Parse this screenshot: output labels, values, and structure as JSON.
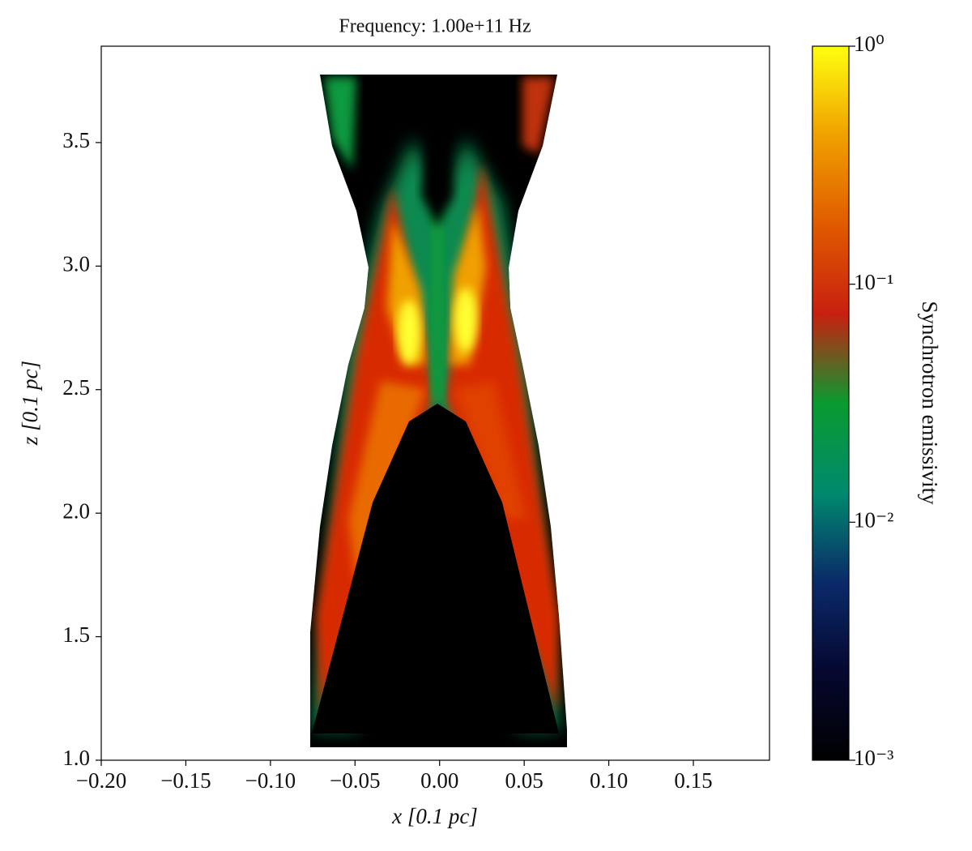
{
  "chart_data": {
    "type": "image",
    "title": "Frequency: 1.00e+11 Hz",
    "x_label": "x [0.1 pc]",
    "y_label": "z [0.1 pc]",
    "xlim": [
      -0.2,
      0.195
    ],
    "ylim": [
      1.0,
      3.89
    ],
    "xticks": [
      {
        "value": -0.2,
        "label": "−0.20"
      },
      {
        "value": -0.15,
        "label": "−0.15"
      },
      {
        "value": -0.1,
        "label": "−0.10"
      },
      {
        "value": -0.05,
        "label": "−0.05"
      },
      {
        "value": 0,
        "label": "0.00"
      },
      0.05,
      {
        "value": 0.1,
        "label": "0.10"
      },
      0.15
    ],
    "yticks": [
      {
        "value": 1.0,
        "label": "1.0"
      },
      1.5,
      {
        "value": 2.0,
        "label": "2.0"
      },
      2.5,
      {
        "value": 3.0,
        "label": "3.0"
      },
      3.5
    ],
    "colorbar": {
      "label": "Synchrotron emissivity",
      "log": true,
      "clim": [
        0.001,
        1
      ],
      "ticks": [
        {
          "value": 0.001,
          "label": "10⁻³"
        },
        {
          "value": 0.01,
          "label": "10⁻²"
        },
        {
          "value": 0.1,
          "label": "10⁻¹"
        },
        {
          "value": 1,
          "label": "10⁰"
        }
      ],
      "colormap": [
        "#000000",
        "#060830",
        "#0b2a6a",
        "#008a6e",
        "#0a9a30",
        "#c82010",
        "#e05a00",
        "#f0a000",
        "#ffff10"
      ]
    }
  }
}
